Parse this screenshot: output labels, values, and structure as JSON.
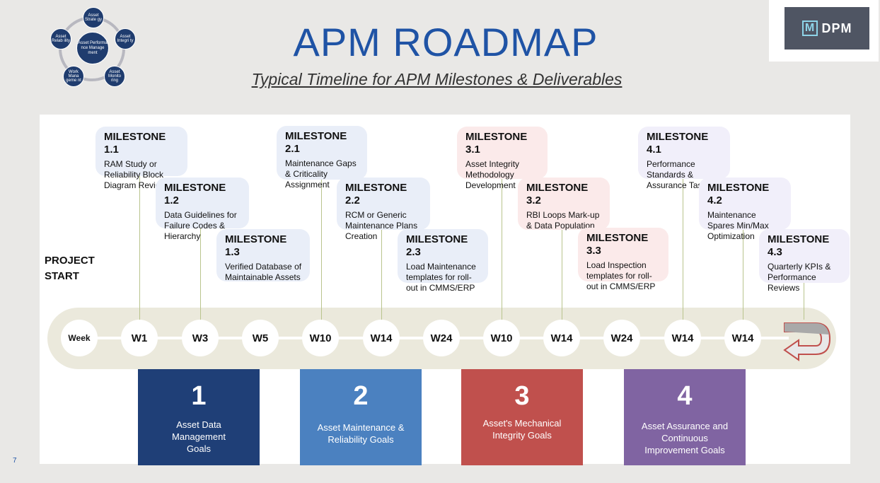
{
  "header": {
    "title": "APM ROADMAP",
    "subtitle": "Typical Timeline for APM Milestones & Deliverables",
    "logo_mark": "M",
    "logo_text": "DPM"
  },
  "wheel": {
    "center": "Asset Performa nce Manage ment",
    "nodes": [
      "Asset Strate gy",
      "Asset Integri ty",
      "Asset Monito ring",
      "Work Mana geme nt",
      "Asset Relab ility"
    ]
  },
  "project_start": [
    "PROJECT",
    "START"
  ],
  "timeline": {
    "weeks": [
      "Week",
      "W1",
      "W3",
      "W5",
      "W10",
      "W14",
      "W24",
      "W10",
      "W14",
      "W24",
      "W14",
      "W14"
    ]
  },
  "milestones": [
    {
      "title": "MILESTONE 1.1",
      "text": "RAM Study or Reliability Block Diagram Review"
    },
    {
      "title": "MILESTONE 1.2",
      "text": "Data Guidelines for Failure Codes & Hierarchy"
    },
    {
      "title": "MILESTONE 1.3",
      "text": "Verified Database of Maintainable Assets"
    },
    {
      "title": "MILESTONE 2.1",
      "text": "Maintenance Gaps & Criticality Assignment"
    },
    {
      "title": "MILESTONE 2.2",
      "text": "RCM or Generic Maintenance Plans Creation"
    },
    {
      "title": "MILESTONE 2.3",
      "text": "Load Maintenance templates for roll-out in CMMS/ERP"
    },
    {
      "title": "MILESTONE 3.1",
      "text": "Asset Integrity Methodology Development"
    },
    {
      "title": "MILESTONE 3.2",
      "text": "RBI Loops Mark-up & Data Population"
    },
    {
      "title": "MILESTONE 3.3",
      "text": "Load Inspection templates for roll-out in CMMS/ERP"
    },
    {
      "title": "MILESTONE 4.1",
      "text": "Performance Standards & Assurance Tasks"
    },
    {
      "title": "MILESTONE 4.2",
      "text": "Maintenance Spares Min/Max Optimization"
    },
    {
      "title": "MILESTONE 4.3",
      "text": "Quarterly KPIs & Performance Reviews"
    }
  ],
  "goals": [
    {
      "number": "1",
      "text": "Asset Data Management Goals",
      "color": "#1f3f77"
    },
    {
      "number": "2",
      "text": "Asset Maintenance & Reliability Goals",
      "color": "#4b81c0"
    },
    {
      "number": "3",
      "text": "Asset's Mechanical Integrity Goals",
      "color": "#c0504d"
    },
    {
      "number": "4",
      "text": "Asset Assurance and Continuous Improvement Goals",
      "color": "#8064a2"
    }
  ],
  "page_number": "7"
}
